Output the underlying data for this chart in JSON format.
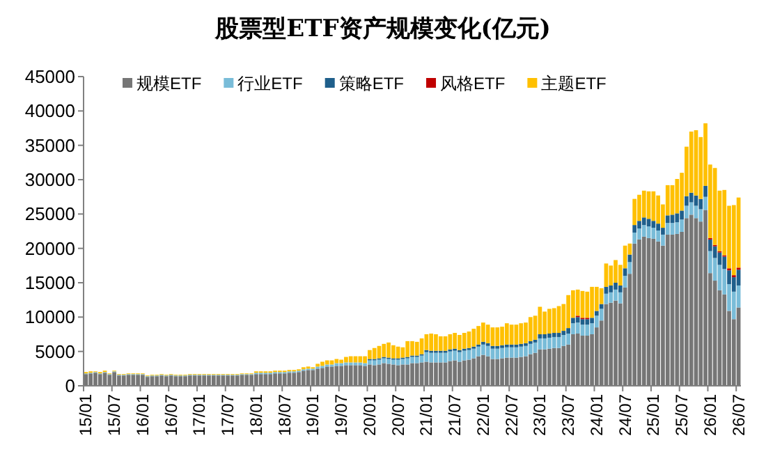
{
  "chart_data": {
    "type": "bar",
    "stacked": true,
    "title": "股票型ETF资产规模变化(亿元)",
    "legend": "top",
    "grid": false,
    "ylim": [
      0,
      45000
    ],
    "yticks": [
      0,
      5000,
      10000,
      15000,
      20000,
      25000,
      30000,
      35000,
      40000,
      45000
    ],
    "categories": [
      "15/01",
      null,
      null,
      null,
      null,
      null,
      "15/07",
      null,
      null,
      null,
      null,
      null,
      "16/01",
      null,
      null,
      null,
      null,
      null,
      "16/07",
      null,
      null,
      null,
      null,
      null,
      "17/01",
      null,
      null,
      null,
      null,
      null,
      "17/07",
      null,
      null,
      null,
      null,
      null,
      "18/01",
      null,
      null,
      null,
      null,
      null,
      "18/07",
      null,
      null,
      null,
      null,
      null,
      "19/01",
      null,
      null,
      null,
      null,
      null,
      "19/07",
      null,
      null,
      null,
      null,
      null,
      "20/01",
      null,
      null,
      null,
      null,
      null,
      "20/07",
      null,
      null,
      null,
      null,
      null,
      "21/01",
      null,
      null,
      null,
      null,
      null,
      "21/07",
      null,
      null,
      null,
      null,
      null,
      "22/01",
      null,
      null,
      null,
      null,
      null,
      "22/07",
      null,
      null,
      null,
      null,
      null,
      "23/01",
      null,
      null,
      null,
      null,
      null,
      "23/07",
      null,
      null,
      null,
      null,
      null,
      "24/01",
      null,
      null,
      null,
      null,
      null,
      "24/07",
      null,
      null,
      null,
      null,
      null,
      "25/01",
      null,
      null,
      null,
      null,
      null,
      "25/07",
      null,
      null,
      null,
      null,
      null,
      "26/01",
      null,
      null,
      null,
      null,
      null,
      "26/07"
    ],
    "series": [
      {
        "name": "规模ETF",
        "color": "#767676",
        "values": [
          1700,
          1800,
          1900,
          1700,
          1900,
          1600,
          2000,
          1500,
          1500,
          1600,
          1600,
          1600,
          1600,
          1300,
          1400,
          1400,
          1500,
          1400,
          1500,
          1400,
          1400,
          1400,
          1500,
          1500,
          1500,
          1500,
          1500,
          1500,
          1500,
          1500,
          1500,
          1500,
          1500,
          1600,
          1600,
          1600,
          1700,
          1700,
          1700,
          1700,
          1800,
          1800,
          1800,
          1900,
          1900,
          2000,
          2200,
          2300,
          2300,
          2500,
          2600,
          2800,
          2800,
          2900,
          2900,
          3000,
          3000,
          3000,
          3000,
          2900,
          3100,
          3000,
          3100,
          3300,
          3200,
          3100,
          3000,
          3100,
          3100,
          3300,
          3300,
          3400,
          3500,
          3400,
          3400,
          3400,
          3400,
          3600,
          3700,
          3500,
          3700,
          3800,
          4000,
          4300,
          4500,
          4300,
          3900,
          3900,
          4000,
          4100,
          4100,
          4100,
          4200,
          4300,
          4600,
          4800,
          5300,
          5300,
          5400,
          5500,
          5500,
          5800,
          6000,
          7500,
          7600,
          7300,
          7300,
          7500,
          8500,
          9500,
          11900,
          12100,
          12400,
          12000,
          14300,
          16300,
          20700,
          21300,
          21700,
          21500,
          21400,
          21000,
          20400,
          22000,
          22000,
          22100,
          22400,
          24400,
          24900,
          24400,
          23900,
          25600,
          16400,
          15300,
          13900,
          13300,
          10900,
          9700,
          11400
        ]
      },
      {
        "name": "行业ETF",
        "color": "#79bcd8",
        "values": [
          100,
          100,
          100,
          100,
          100,
          100,
          100,
          100,
          100,
          100,
          100,
          100,
          100,
          100,
          100,
          100,
          100,
          100,
          100,
          100,
          100,
          100,
          100,
          100,
          100,
          100,
          100,
          100,
          100,
          100,
          100,
          100,
          100,
          100,
          100,
          100,
          200,
          200,
          200,
          200,
          200,
          200,
          200,
          200,
          200,
          200,
          200,
          200,
          200,
          300,
          300,
          300,
          300,
          400,
          400,
          400,
          400,
          400,
          400,
          400,
          600,
          700,
          700,
          700,
          700,
          700,
          800,
          800,
          900,
          900,
          900,
          1000,
          1400,
          1400,
          1400,
          1400,
          1400,
          1400,
          1400,
          1400,
          1400,
          1400,
          1400,
          1400,
          1500,
          1500,
          1500,
          1500,
          1500,
          1500,
          1500,
          1500,
          1500,
          1500,
          1500,
          1500,
          1600,
          1600,
          1600,
          1600,
          1600,
          1600,
          1600,
          1600,
          1600,
          1600,
          1600,
          1600,
          1700,
          1700,
          1500,
          1500,
          1600,
          1600,
          1700,
          1700,
          1600,
          1600,
          1700,
          1700,
          1600,
          1600,
          1600,
          1700,
          1700,
          1700,
          1800,
          1800,
          1800,
          1800,
          1800,
          1900,
          3200,
          3300,
          3700,
          3700,
          3900,
          4000,
          3200
        ]
      },
      {
        "name": "策略ETF",
        "color": "#1f5f8b",
        "values": [
          0,
          0,
          0,
          0,
          0,
          0,
          0,
          0,
          0,
          0,
          0,
          0,
          0,
          0,
          0,
          0,
          0,
          0,
          0,
          0,
          0,
          0,
          0,
          0,
          0,
          0,
          0,
          0,
          0,
          0,
          0,
          0,
          0,
          0,
          0,
          0,
          0,
          0,
          0,
          0,
          0,
          0,
          0,
          0,
          0,
          0,
          0,
          0,
          0,
          0,
          0,
          0,
          0,
          0,
          0,
          0,
          0,
          0,
          0,
          0,
          200,
          200,
          200,
          200,
          200,
          200,
          200,
          200,
          200,
          200,
          200,
          200,
          300,
          300,
          300,
          300,
          300,
          300,
          300,
          300,
          300,
          300,
          300,
          300,
          400,
          400,
          400,
          400,
          400,
          400,
          400,
          400,
          400,
          400,
          400,
          400,
          600,
          600,
          600,
          600,
          600,
          600,
          800,
          800,
          800,
          800,
          800,
          800,
          700,
          700,
          1000,
          1000,
          1000,
          1000,
          1100,
          1100,
          1100,
          1100,
          1100,
          1100,
          1000,
          1000,
          1000,
          1100,
          1200,
          1300,
          1300,
          1400,
          1400,
          1500,
          1500,
          1600,
          1700,
          1700,
          1800,
          1800,
          2000,
          2100,
          2300
        ]
      },
      {
        "name": "风格ETF",
        "color": "#c00000",
        "values": [
          0,
          0,
          0,
          0,
          0,
          0,
          0,
          0,
          0,
          0,
          0,
          0,
          0,
          0,
          0,
          0,
          0,
          0,
          0,
          0,
          0,
          0,
          0,
          0,
          0,
          0,
          0,
          0,
          0,
          0,
          0,
          0,
          0,
          0,
          0,
          0,
          0,
          0,
          0,
          0,
          0,
          0,
          0,
          0,
          0,
          0,
          0,
          0,
          0,
          0,
          0,
          0,
          0,
          0,
          0,
          0,
          0,
          0,
          0,
          0,
          0,
          0,
          0,
          0,
          0,
          0,
          0,
          0,
          0,
          0,
          0,
          0,
          0,
          0,
          0,
          0,
          0,
          0,
          0,
          0,
          0,
          0,
          0,
          0,
          0,
          0,
          0,
          0,
          0,
          0,
          0,
          0,
          0,
          0,
          0,
          0,
          0,
          0,
          0,
          0,
          0,
          0,
          0,
          0,
          200,
          200,
          200,
          0,
          0,
          0,
          0,
          0,
          0,
          0,
          0,
          0,
          0,
          0,
          0,
          0,
          0,
          0,
          0,
          0,
          0,
          0,
          0,
          0,
          0,
          0,
          0,
          0,
          200,
          200,
          200,
          200,
          300,
          300,
          300
        ]
      },
      {
        "name": "主题ETF",
        "color": "#ffc000",
        "values": [
          200,
          200,
          100,
          200,
          200,
          100,
          100,
          100,
          100,
          100,
          100,
          100,
          100,
          100,
          100,
          100,
          100,
          100,
          100,
          100,
          100,
          100,
          100,
          100,
          100,
          100,
          100,
          100,
          100,
          100,
          100,
          100,
          100,
          100,
          100,
          100,
          200,
          200,
          200,
          200,
          200,
          200,
          200,
          200,
          200,
          200,
          300,
          300,
          200,
          400,
          600,
          600,
          600,
          600,
          500,
          800,
          900,
          900,
          900,
          1000,
          1300,
          1600,
          1800,
          1900,
          2200,
          1900,
          1700,
          1500,
          2300,
          2100,
          2000,
          2300,
          2300,
          2500,
          2400,
          2100,
          2100,
          2200,
          2300,
          2200,
          2300,
          2400,
          2600,
          2700,
          2800,
          2700,
          2700,
          2700,
          2700,
          3100,
          2900,
          2900,
          3000,
          3000,
          3500,
          3500,
          4000,
          3300,
          3600,
          3600,
          3900,
          3900,
          4800,
          4000,
          3800,
          3900,
          3800,
          4500,
          3500,
          2300,
          3400,
          2900,
          3300,
          3000,
          3300,
          1600,
          3800,
          3800,
          3900,
          4000,
          4300,
          4100,
          3400,
          4400,
          4300,
          5000,
          5500,
          7200,
          8900,
          9500,
          9000,
          9100,
          10700,
          11200,
          8800,
          9500,
          9100,
          10200,
          10200
        ]
      }
    ]
  }
}
